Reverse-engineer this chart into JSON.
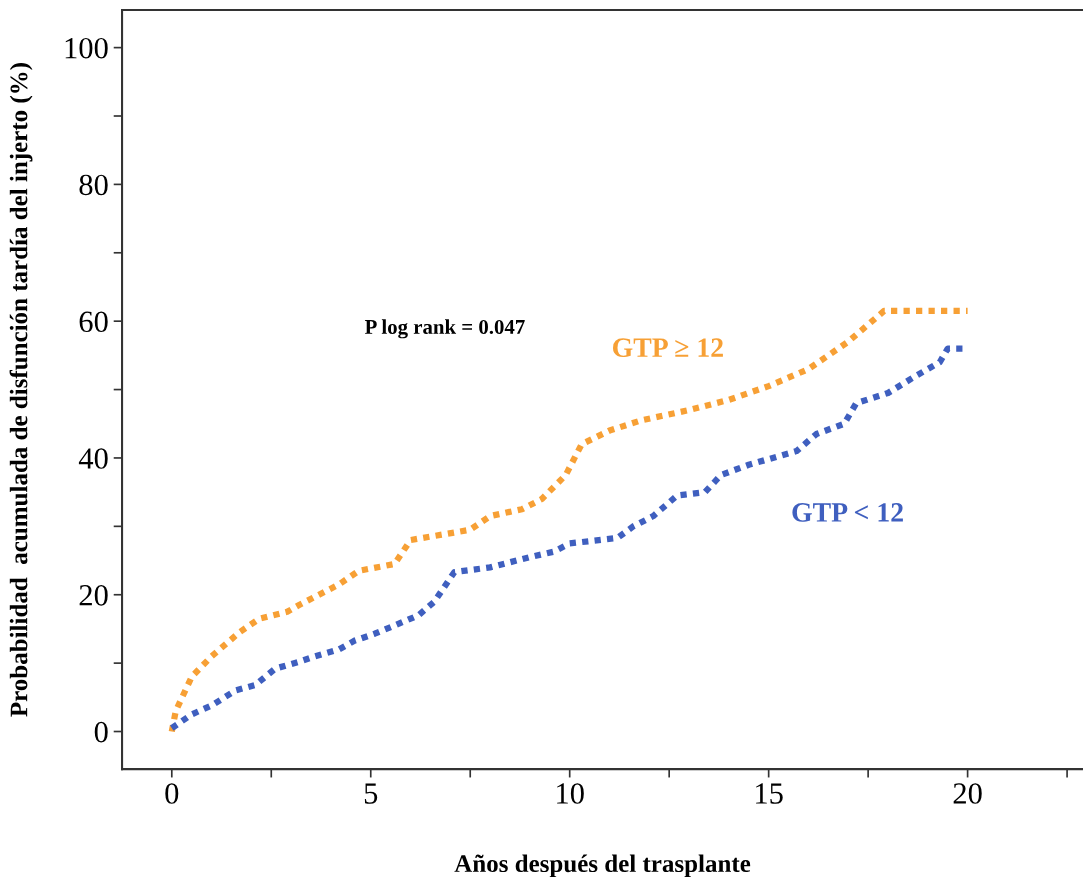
{
  "chart_data": {
    "type": "line",
    "xlabel": "Años después del trasplante",
    "ylabel": "Probabilidad  acumulada de disfunción tardía del injerto (%)",
    "annotations": [
      "P log rank = 0.047"
    ],
    "xlim": [
      -1.25,
      22.9
    ],
    "ylim": [
      -5.5,
      105.5
    ],
    "xticks": [
      0,
      {
        "value": 2.5,
        "label": null
      },
      5,
      {
        "value": 7.5,
        "label": null
      },
      10,
      {
        "value": 12.5,
        "label": null
      },
      15,
      {
        "value": 17.5,
        "label": null
      },
      20,
      {
        "value": 22.5,
        "label": null
      }
    ],
    "yticks": [
      0,
      {
        "value": 10,
        "label": null
      },
      20,
      {
        "value": 30,
        "label": null
      },
      40,
      {
        "value": 50,
        "label": null
      },
      60,
      {
        "value": 70,
        "label": null
      },
      80,
      {
        "value": 90,
        "label": null
      },
      100
    ],
    "grid": false,
    "legend": false,
    "line_style": "dotted",
    "marker": "none",
    "series": [
      {
        "name": "GTP ≥ 12",
        "color": "#f7a035",
        "x": [
          0,
          0.1,
          0.5,
          1,
          1.7,
          2.2,
          2.9,
          3.2,
          3.7,
          4.2,
          4.7,
          5.6,
          6.0,
          7.5,
          8,
          8.8,
          9.3,
          9.9,
          10.3,
          11,
          11.8,
          13,
          14,
          15,
          16,
          17,
          17.9,
          20
        ],
        "values": [
          0,
          3,
          8,
          11,
          14.5,
          16.5,
          17.5,
          18.5,
          20,
          21.5,
          23.5,
          24.5,
          28,
          29.5,
          31.5,
          32.5,
          34,
          37.5,
          42,
          44,
          45.5,
          47,
          48.5,
          50.5,
          53,
          57,
          61.5,
          61.5
        ]
      },
      {
        "name": "GTP < 12",
        "color": "#3f5fbf",
        "x": [
          0,
          0.5,
          1,
          1.6,
          2.1,
          2.6,
          3.2,
          3.6,
          4.2,
          4.6,
          5.1,
          5.6,
          6.2,
          6.6,
          7.1,
          8,
          9,
          9.6,
          10,
          11.2,
          11.6,
          12.1,
          12.7,
          13.4,
          13.8,
          14.5,
          15.7,
          16.2,
          16.9,
          17.2,
          18,
          18.7,
          19.3,
          19.5,
          20
        ],
        "values": [
          0.5,
          2.5,
          3.8,
          6,
          6.8,
          9.2,
          10.2,
          11,
          12,
          13.3,
          14.3,
          15.5,
          17,
          19,
          23.3,
          24,
          25.5,
          26.3,
          27.5,
          28.3,
          30,
          31.5,
          34.5,
          35,
          37.5,
          39,
          41,
          43.5,
          45,
          48,
          49.5,
          52,
          54,
          56,
          56
        ]
      }
    ]
  }
}
